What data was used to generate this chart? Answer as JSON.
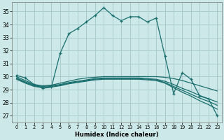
{
  "xlabel": "Humidex (Indice chaleur)",
  "bg_color": "#cce8e8",
  "line_color": "#1a6e6e",
  "grid_color": "#aacccc",
  "xlim": [
    -0.5,
    23.5
  ],
  "ylim": [
    26.5,
    35.7
  ],
  "yticks": [
    27,
    28,
    29,
    30,
    31,
    32,
    33,
    34,
    35
  ],
  "xticks": [
    0,
    1,
    2,
    3,
    4,
    5,
    6,
    7,
    8,
    9,
    10,
    11,
    12,
    13,
    14,
    15,
    16,
    17,
    18,
    19,
    20,
    21,
    22,
    23
  ],
  "lines": [
    {
      "x": [
        0,
        1,
        2,
        3,
        4,
        5,
        6,
        7,
        8,
        9,
        10,
        11,
        12,
        13,
        14,
        15,
        16,
        17,
        18,
        19,
        20,
        21,
        22,
        23
      ],
      "y": [
        30.1,
        29.9,
        29.4,
        29.1,
        29.2,
        31.8,
        33.3,
        33.7,
        34.2,
        34.7,
        35.3,
        34.7,
        34.3,
        34.6,
        34.6,
        34.2,
        34.5,
        31.6,
        28.7,
        30.3,
        29.8,
        28.5,
        28.3,
        27.0
      ],
      "marker": "+"
    },
    {
      "x": [
        0,
        1,
        2,
        3,
        4,
        5,
        6,
        7,
        8,
        9,
        10,
        11,
        12,
        13,
        14,
        15,
        16,
        17,
        18,
        19,
        20,
        21,
        22,
        23
      ],
      "y": [
        30.0,
        29.7,
        29.4,
        29.3,
        29.35,
        29.5,
        29.65,
        29.8,
        29.9,
        29.95,
        30.0,
        30.0,
        30.0,
        30.0,
        30.0,
        30.0,
        30.0,
        29.95,
        29.85,
        29.7,
        29.5,
        29.3,
        29.1,
        28.9
      ],
      "marker": null
    },
    {
      "x": [
        0,
        1,
        2,
        3,
        4,
        5,
        6,
        7,
        8,
        9,
        10,
        11,
        12,
        13,
        14,
        15,
        16,
        17,
        18,
        19,
        20,
        21,
        22,
        23
      ],
      "y": [
        29.9,
        29.6,
        29.35,
        29.25,
        29.3,
        29.4,
        29.55,
        29.65,
        29.75,
        29.85,
        29.9,
        29.9,
        29.9,
        29.9,
        29.9,
        29.85,
        29.8,
        29.65,
        29.4,
        29.1,
        28.85,
        28.55,
        28.3,
        28.05
      ],
      "marker": null
    },
    {
      "x": [
        0,
        1,
        2,
        3,
        4,
        5,
        6,
        7,
        8,
        9,
        10,
        11,
        12,
        13,
        14,
        15,
        16,
        17,
        18,
        19,
        20,
        21,
        22,
        23
      ],
      "y": [
        29.85,
        29.55,
        29.3,
        29.2,
        29.25,
        29.35,
        29.5,
        29.6,
        29.7,
        29.8,
        29.85,
        29.85,
        29.85,
        29.85,
        29.85,
        29.8,
        29.75,
        29.55,
        29.25,
        28.95,
        28.65,
        28.35,
        28.1,
        27.8
      ],
      "marker": null
    },
    {
      "x": [
        0,
        1,
        2,
        3,
        4,
        5,
        6,
        7,
        8,
        9,
        10,
        11,
        12,
        13,
        14,
        15,
        16,
        17,
        18,
        19,
        20,
        21,
        22,
        23
      ],
      "y": [
        29.8,
        29.5,
        29.25,
        29.15,
        29.2,
        29.3,
        29.45,
        29.55,
        29.65,
        29.75,
        29.8,
        29.8,
        29.8,
        29.8,
        29.8,
        29.75,
        29.7,
        29.5,
        29.15,
        28.8,
        28.5,
        28.15,
        27.85,
        27.5
      ],
      "marker": null
    }
  ]
}
